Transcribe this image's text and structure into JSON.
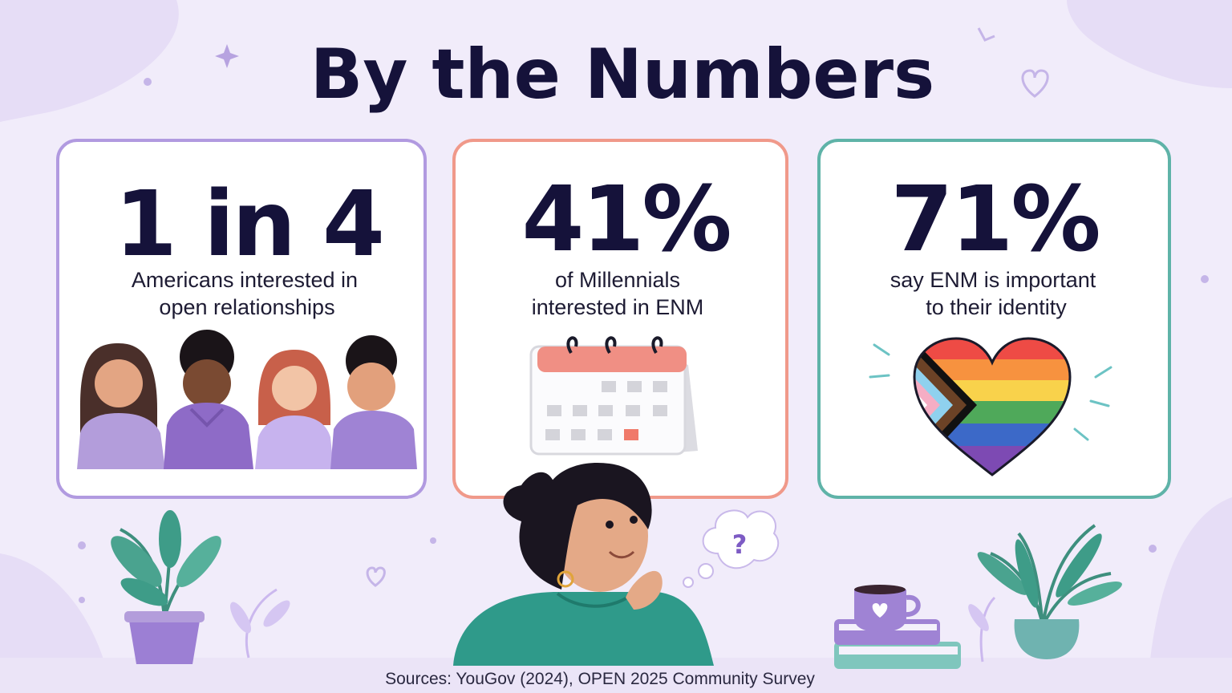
{
  "header": {
    "title": "By the Numbers"
  },
  "cards": [
    {
      "stat": "1 in 4",
      "description": [
        "Americans interested in",
        "open relationships"
      ]
    },
    {
      "stat": "41%",
      "description": [
        "of Millennials",
        "interested in ENM"
      ]
    },
    {
      "stat": "71%",
      "description": [
        "say ENM is important",
        "to their identity"
      ]
    }
  ],
  "footer": {
    "sources": "Sources: YouGov (2024), OPEN 2025 Community Survey"
  }
}
